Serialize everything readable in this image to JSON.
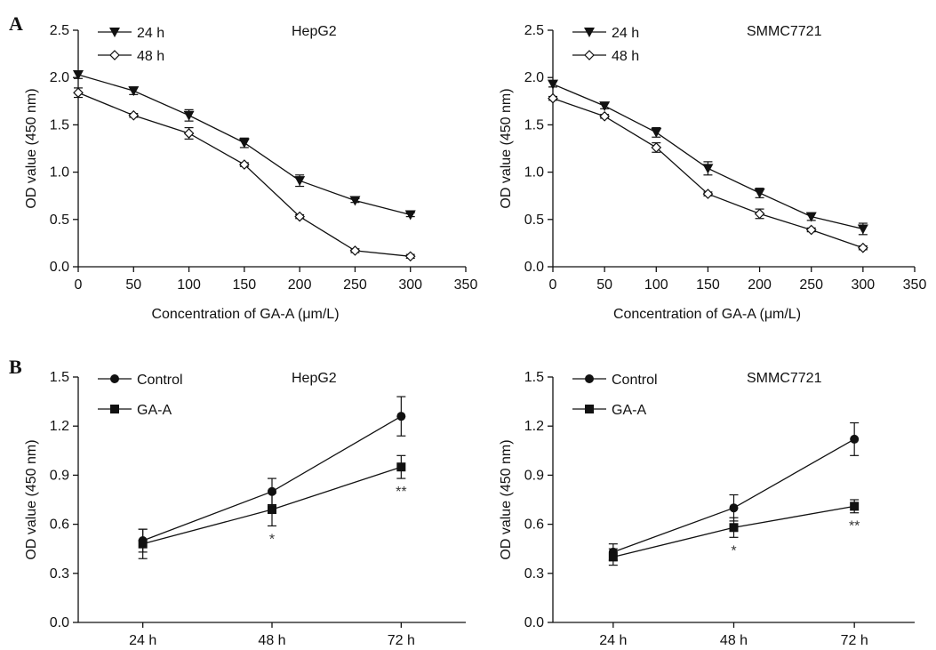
{
  "panel_labels": [
    "A",
    "B"
  ],
  "chart_data": [
    {
      "type": "line",
      "panel": "A",
      "cell_label": "HepG2",
      "xlabel": "Concentration of GA-A (μm/L)",
      "ylabel": "OD value (450 nm)",
      "xlim": [
        0,
        350
      ],
      "ylim": [
        0,
        2.5
      ],
      "x_ticks": [
        0,
        50,
        100,
        150,
        200,
        250,
        300,
        350
      ],
      "y_ticks": [
        0.0,
        0.5,
        1.0,
        1.5,
        2.0,
        2.5
      ],
      "legend_position": "top-left",
      "grid": false,
      "x": [
        0,
        50,
        100,
        150,
        200,
        250,
        300
      ],
      "series": [
        {
          "name": "24 h",
          "marker": "triangle-down",
          "values": [
            2.03,
            1.86,
            1.6,
            1.31,
            0.91,
            0.7,
            0.55
          ],
          "errors": [
            0.04,
            0.04,
            0.06,
            0.05,
            0.06,
            0.02,
            0.02
          ]
        },
        {
          "name": "48 h",
          "marker": "diamond",
          "values": [
            1.84,
            1.6,
            1.41,
            1.08,
            0.53,
            0.17,
            0.11
          ],
          "errors": [
            0.05,
            0.02,
            0.06,
            0.02,
            0.02,
            0.02,
            0.02
          ]
        }
      ]
    },
    {
      "type": "line",
      "panel": "A",
      "cell_label": "SMMC7721",
      "xlabel": "Concentration of GA-A (μm/L)",
      "ylabel": "OD value (450 nm)",
      "xlim": [
        0,
        350
      ],
      "ylim": [
        0,
        2.5
      ],
      "x_ticks": [
        0,
        50,
        100,
        150,
        200,
        250,
        300,
        350
      ],
      "y_ticks": [
        0.0,
        0.5,
        1.0,
        1.5,
        2.0,
        2.5
      ],
      "legend_position": "top-left",
      "grid": false,
      "x": [
        0,
        50,
        100,
        150,
        200,
        250,
        300
      ],
      "series": [
        {
          "name": "24 h",
          "marker": "triangle-down",
          "values": [
            1.93,
            1.7,
            1.42,
            1.04,
            0.78,
            0.53,
            0.4
          ],
          "errors": [
            0.03,
            0.03,
            0.05,
            0.07,
            0.05,
            0.04,
            0.06
          ]
        },
        {
          "name": "48 h",
          "marker": "diamond",
          "values": [
            1.78,
            1.59,
            1.26,
            0.77,
            0.56,
            0.39,
            0.2
          ],
          "errors": [
            0.02,
            0.02,
            0.05,
            0.02,
            0.05,
            0.02,
            0.02
          ]
        }
      ]
    },
    {
      "type": "line",
      "panel": "B",
      "cell_label": "HepG2",
      "xlabel": "",
      "ylabel": "OD value (450 nm)",
      "categories": [
        "24 h",
        "48 h",
        "72 h"
      ],
      "ylim": [
        0,
        1.5
      ],
      "y_ticks": [
        "0.0",
        "0.3",
        "0.6",
        "0.9",
        "1.2",
        "1.5"
      ],
      "legend_position": "top-left",
      "grid": false,
      "series": [
        {
          "name": "Control",
          "marker": "circle",
          "values": [
            0.5,
            0.8,
            1.26
          ],
          "errors": [
            0.07,
            0.08,
            0.12
          ]
        },
        {
          "name": "GA-A",
          "marker": "square",
          "values": [
            0.48,
            0.69,
            0.95
          ],
          "errors": [
            0.09,
            0.1,
            0.07
          ]
        }
      ],
      "annotations": [
        {
          "category": "48 h",
          "text": "*"
        },
        {
          "category": "72 h",
          "text": "**"
        }
      ]
    },
    {
      "type": "line",
      "panel": "B",
      "cell_label": "SMMC7721",
      "xlabel": "",
      "ylabel": "OD value (450 nm)",
      "categories": [
        "24 h",
        "48 h",
        "72 h"
      ],
      "ylim": [
        0,
        1.5
      ],
      "y_ticks": [
        "0.0",
        "0.3",
        "0.6",
        "0.9",
        "1.2",
        "1.5"
      ],
      "legend_position": "top-left",
      "grid": false,
      "series": [
        {
          "name": "Control",
          "marker": "circle",
          "values": [
            0.43,
            0.7,
            1.12
          ],
          "errors": [
            0.05,
            0.08,
            0.1
          ]
        },
        {
          "name": "GA-A",
          "marker": "square",
          "values": [
            0.4,
            0.58,
            0.71
          ],
          "errors": [
            0.05,
            0.06,
            0.04
          ]
        }
      ],
      "annotations": [
        {
          "category": "48 h",
          "text": "*"
        },
        {
          "category": "72 h",
          "text": "**"
        }
      ]
    }
  ]
}
